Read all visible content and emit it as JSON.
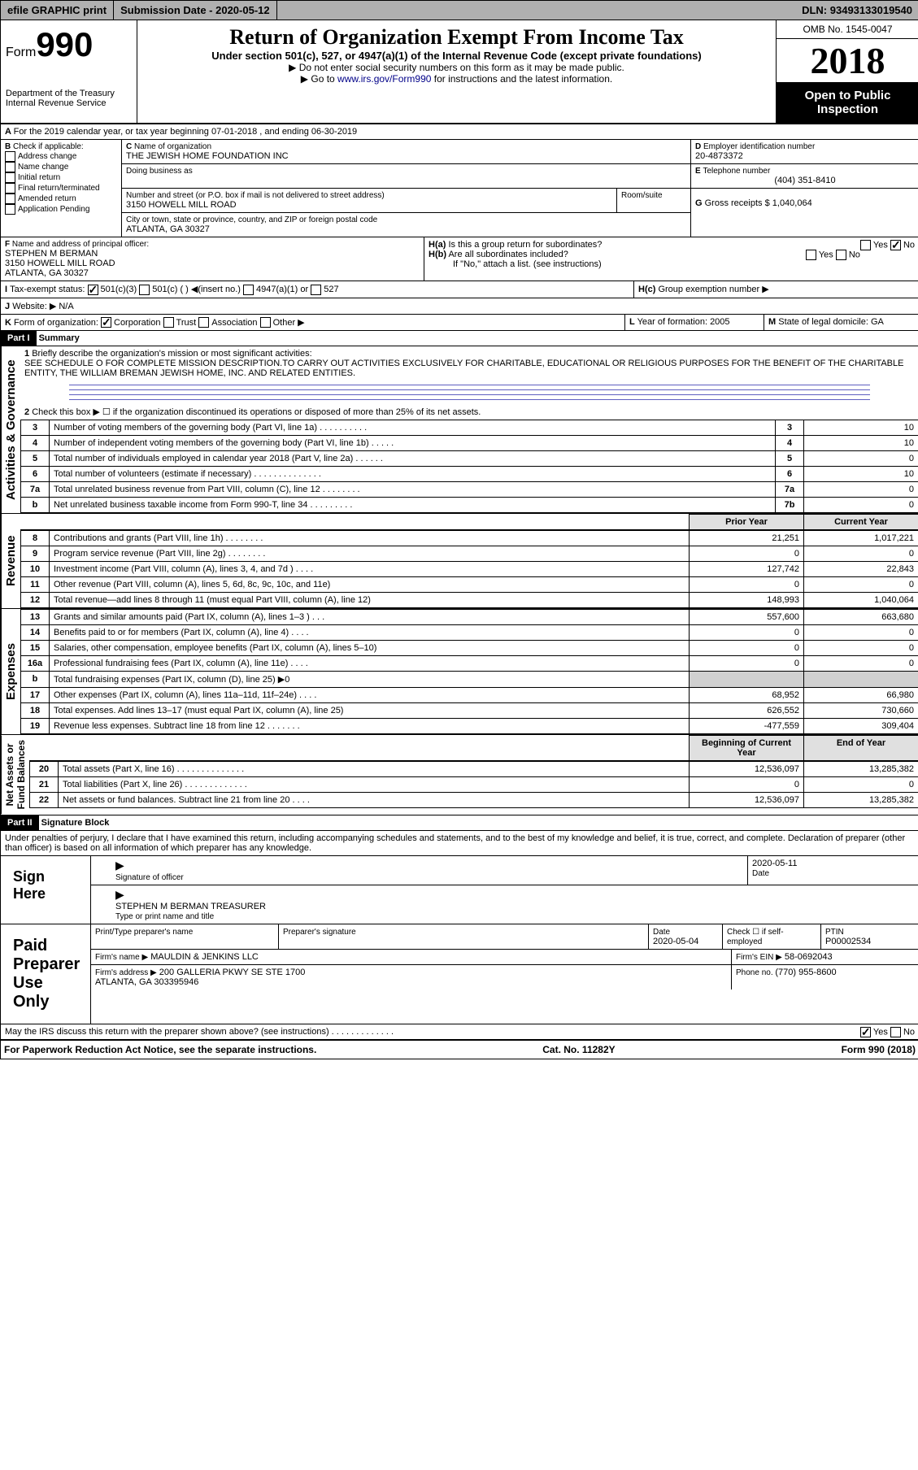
{
  "header": {
    "efile": "efile GRAPHIC print",
    "subdate_lbl": "Submission Date - ",
    "subdate": "2020-05-12",
    "dln_lbl": "DLN: ",
    "dln": "93493133019540"
  },
  "formhdr": {
    "form_word": "Form",
    "form_num": "990",
    "dept": "Department of the Treasury\nInternal Revenue Service",
    "title": "Return of Organization Exempt From Income Tax",
    "sub": "Under section 501(c), 527, or 4947(a)(1) of the Internal Revenue Code (except private foundations)",
    "inst1": "▶ Do not enter social security numbers on this form as it may be made public.",
    "inst2_pre": "▶ Go to ",
    "inst2_link": "www.irs.gov/Form990",
    "inst2_post": " for instructions and the latest information.",
    "omb": "OMB No. 1545-0047",
    "year": "2018",
    "public": "Open to Public Inspection"
  },
  "lineA": "For the 2019 calendar year, or tax year beginning 07-01-2018   , and ending 06-30-2019",
  "box": {
    "b_lbl": "Check if applicable:",
    "b1": "Address change",
    "b2": "Name change",
    "b3": "Initial return",
    "b4": "Final return/terminated",
    "b5": "Amended return",
    "b6": "Application Pending",
    "c_lbl": "Name of organization",
    "c_val": "THE JEWISH HOME FOUNDATION INC",
    "dba_lbl": "Doing business as",
    "addr_lbl": "Number and street (or P.O. box if mail is not delivered to street address)",
    "room_lbl": "Room/suite",
    "addr_val": "3150 HOWELL MILL ROAD",
    "city_lbl": "City or town, state or province, country, and ZIP or foreign postal code",
    "city_val": "ATLANTA, GA  30327",
    "d_lbl": "Employer identification number",
    "d_val": "20-4873372",
    "e_lbl": "Telephone number",
    "e_val": "(404) 351-8410",
    "g_lbl": "Gross receipts $ ",
    "g_val": "1,040,064",
    "f_lbl": "Name and address of principal officer:",
    "f_val": "STEPHEN M BERMAN\n3150 HOWELL MILL ROAD\nATLANTA, GA  30327",
    "ha_lbl": "Is this a group return for subordinates?",
    "hb_lbl": "Are all subordinates included?",
    "hb_note": "If \"No,\" attach a list. (see instructions)",
    "hc_lbl": "Group exemption number ▶",
    "yes": "Yes",
    "no": "No",
    "i_lbl": "Tax-exempt status:",
    "i1": "501(c)(3)",
    "i2": "501(c) (  ) ◀(insert no.)",
    "i3": "4947(a)(1) or",
    "i4": "527",
    "j_lbl": "Website: ▶",
    "j_val": "N/A",
    "k_lbl": "Form of organization:",
    "k1": "Corporation",
    "k2": "Trust",
    "k3": "Association",
    "k4": "Other ▶",
    "l_lbl": "Year of formation: ",
    "l_val": "2005",
    "m_lbl": "State of legal domicile: ",
    "m_val": "GA"
  },
  "part1": {
    "label": "Part I",
    "title": "Summary",
    "q1": "Briefly describe the organization's mission or most significant activities:",
    "q1v": "SEE SCHEDULE O FOR COMPLETE MISSION DESCRIPTION.TO CARRY OUT ACTIVITIES EXCLUSIVELY FOR CHARITABLE, EDUCATIONAL OR RELIGIOUS PURPOSES FOR THE BENEFIT OF THE CHARITABLE ENTITY, THE WILLIAM BREMAN JEWISH HOME, INC. AND RELATED ENTITIES.",
    "q2": "Check this box ▶ ☐ if the organization discontinued its operations or disposed of more than 25% of its net assets.",
    "rows_gov": [
      {
        "n": "3",
        "t": "Number of voting members of the governing body (Part VI, line 1a)  .  .  .  .  .  .  .  .  .  .",
        "bn": "3",
        "v": "10"
      },
      {
        "n": "4",
        "t": "Number of independent voting members of the governing body (Part VI, line 1b)  .  .  .  .  .",
        "bn": "4",
        "v": "10"
      },
      {
        "n": "5",
        "t": "Total number of individuals employed in calendar year 2018 (Part V, line 2a)  .  .  .  .  .  .",
        "bn": "5",
        "v": "0"
      },
      {
        "n": "6",
        "t": "Total number of volunteers (estimate if necessary)   .  .  .  .  .  .  .  .  .  .  .  .  .  .",
        "bn": "6",
        "v": "10"
      },
      {
        "n": "7a",
        "t": "Total unrelated business revenue from Part VIII, column (C), line 12  .  .  .  .  .  .  .  .",
        "bn": "7a",
        "v": "0"
      },
      {
        "n": "b",
        "t": "Net unrelated business taxable income from Form 990-T, line 34   .  .  .  .  .  .  .  .  .",
        "bn": "7b",
        "v": "0"
      }
    ],
    "colh_prev": "Prior Year",
    "colh_cur": "Current Year",
    "rows_rev": [
      {
        "n": "8",
        "t": "Contributions and grants (Part VIII, line 1h)   .  .  .  .  .  .  .  .",
        "p": "21,251",
        "c": "1,017,221"
      },
      {
        "n": "9",
        "t": "Program service revenue (Part VIII, line 2g)  .  .  .  .  .  .  .  .",
        "p": "0",
        "c": "0"
      },
      {
        "n": "10",
        "t": "Investment income (Part VIII, column (A), lines 3, 4, and 7d )  .  .  .  .",
        "p": "127,742",
        "c": "22,843"
      },
      {
        "n": "11",
        "t": "Other revenue (Part VIII, column (A), lines 5, 6d, 8c, 9c, 10c, and 11e)",
        "p": "0",
        "c": "0"
      },
      {
        "n": "12",
        "t": "Total revenue—add lines 8 through 11 (must equal Part VIII, column (A), line 12)",
        "p": "148,993",
        "c": "1,040,064"
      }
    ],
    "rows_exp": [
      {
        "n": "13",
        "t": "Grants and similar amounts paid (Part IX, column (A), lines 1–3 )  .  .  .",
        "p": "557,600",
        "c": "663,680"
      },
      {
        "n": "14",
        "t": "Benefits paid to or for members (Part IX, column (A), line 4)  .  .  .  .",
        "p": "0",
        "c": "0"
      },
      {
        "n": "15",
        "t": "Salaries, other compensation, employee benefits (Part IX, column (A), lines 5–10)",
        "p": "0",
        "c": "0"
      },
      {
        "n": "16a",
        "t": "Professional fundraising fees (Part IX, column (A), line 11e)  .  .  .  .",
        "p": "0",
        "c": "0"
      },
      {
        "n": "b",
        "t": "Total fundraising expenses (Part IX, column (D), line 25) ▶0",
        "p": "",
        "c": "",
        "shade": true
      },
      {
        "n": "17",
        "t": "Other expenses (Part IX, column (A), lines 11a–11d, 11f–24e)  .  .  .  .",
        "p": "68,952",
        "c": "66,980"
      },
      {
        "n": "18",
        "t": "Total expenses. Add lines 13–17 (must equal Part IX, column (A), line 25)",
        "p": "626,552",
        "c": "730,660"
      },
      {
        "n": "19",
        "t": "Revenue less expenses. Subtract line 18 from line 12  .  .  .  .  .  .  .",
        "p": "-477,559",
        "c": "309,404"
      }
    ],
    "colh_beg": "Beginning of Current Year",
    "colh_end": "End of Year",
    "rows_net": [
      {
        "n": "20",
        "t": "Total assets (Part X, line 16)  .  .  .  .  .  .  .  .  .  .  .  .  .  .",
        "p": "12,536,097",
        "c": "13,285,382"
      },
      {
        "n": "21",
        "t": "Total liabilities (Part X, line 26)  .  .  .  .  .  .  .  .  .  .  .  .  .",
        "p": "0",
        "c": "0"
      },
      {
        "n": "22",
        "t": "Net assets or fund balances. Subtract line 21 from line 20   .  .  .  .",
        "p": "12,536,097",
        "c": "13,285,382"
      }
    ],
    "side_gov": "Activities & Governance",
    "side_rev": "Revenue",
    "side_exp": "Expenses",
    "side_net": "Net Assets or\nFund Balances"
  },
  "part2": {
    "label": "Part II",
    "title": "Signature Block",
    "decl": "Under penalties of perjury, I declare that I have examined this return, including accompanying schedules and statements, and to the best of my knowledge and belief, it is true, correct, and complete. Declaration of preparer (other than officer) is based on all information of which preparer has any knowledge.",
    "sign_here": "Sign Here",
    "sig_officer": "Signature of officer",
    "date_lbl": "Date",
    "date_val": "2020-05-11",
    "name_val": "STEPHEN M BERMAN  TREASURER",
    "name_lbl": "Type or print name and title",
    "paid": "Paid Preparer Use Only",
    "pp_name_lbl": "Print/Type preparer's name",
    "pp_sig_lbl": "Preparer's signature",
    "pp_date_lbl": "Date",
    "pp_date_val": "2020-05-04",
    "pp_self": "Check ☐ if self-employed",
    "pp_ptin_lbl": "PTIN",
    "pp_ptin_val": "P00002534",
    "firm_name_lbl": "Firm's name    ▶",
    "firm_name_val": "MAULDIN & JENKINS LLC",
    "firm_ein_lbl": "Firm's EIN ▶",
    "firm_ein_val": "58-0692043",
    "firm_addr_lbl": "Firm's address ▶",
    "firm_addr_val": "200 GALLERIA PKWY SE STE 1700\nATLANTA, GA  303395946",
    "phone_lbl": "Phone no. ",
    "phone_val": "(770) 955-8600",
    "discuss": "May the IRS discuss this return with the preparer shown above? (see instructions)   .  .  .  .  .  .  .  .  .  .  .  .  ."
  },
  "footer": {
    "l": "For Paperwork Reduction Act Notice, see the separate instructions.",
    "c": "Cat. No. 11282Y",
    "r": "Form 990 (2018)"
  }
}
